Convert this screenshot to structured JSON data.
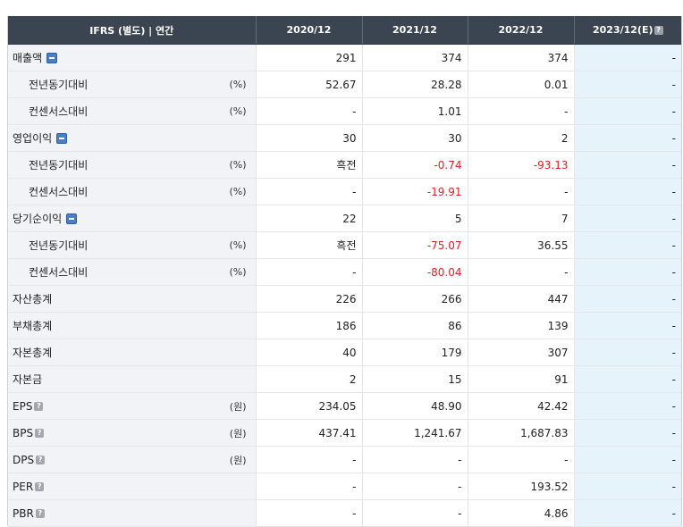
{
  "header": {
    "label_col": "IFRS (별도) | 연간",
    "periods": [
      "2020/12",
      "2021/12",
      "2022/12",
      "2023/12(E)"
    ],
    "help_glyph": "?"
  },
  "rows": [
    {
      "label": "매출액",
      "unit": "",
      "icon": "minus-icon",
      "sub": false,
      "values": [
        "291",
        "374",
        "374",
        "-"
      ]
    },
    {
      "label": "전년동기대비",
      "unit": "(%)",
      "icon": "",
      "sub": true,
      "values": [
        "52.67",
        "28.28",
        "0.01",
        "-"
      ]
    },
    {
      "label": "컨센서스대비",
      "unit": "(%)",
      "icon": "",
      "sub": true,
      "values": [
        "-",
        "1.01",
        "-",
        "-"
      ]
    },
    {
      "label": "영업이익",
      "unit": "",
      "icon": "minus-icon",
      "sub": false,
      "values": [
        "30",
        "30",
        "2",
        "-"
      ]
    },
    {
      "label": "전년동기대비",
      "unit": "(%)",
      "icon": "",
      "sub": true,
      "values": [
        "흑전",
        "-0.74",
        "-93.13",
        "-"
      ]
    },
    {
      "label": "컨센서스대비",
      "unit": "(%)",
      "icon": "",
      "sub": true,
      "values": [
        "-",
        "-19.91",
        "-",
        "-"
      ]
    },
    {
      "label": "당기순이익",
      "unit": "",
      "icon": "minus-icon",
      "sub": false,
      "values": [
        "22",
        "5",
        "7",
        "-"
      ]
    },
    {
      "label": "전년동기대비",
      "unit": "(%)",
      "icon": "",
      "sub": true,
      "values": [
        "흑전",
        "-75.07",
        "36.55",
        "-"
      ]
    },
    {
      "label": "컨센서스대비",
      "unit": "(%)",
      "icon": "",
      "sub": true,
      "values": [
        "-",
        "-80.04",
        "-",
        "-"
      ]
    },
    {
      "label": "자산총계",
      "unit": "",
      "icon": "",
      "sub": false,
      "values": [
        "226",
        "266",
        "447",
        "-"
      ]
    },
    {
      "label": "부채총계",
      "unit": "",
      "icon": "",
      "sub": false,
      "values": [
        "186",
        "86",
        "139",
        "-"
      ]
    },
    {
      "label": "자본총계",
      "unit": "",
      "icon": "",
      "sub": false,
      "values": [
        "40",
        "179",
        "307",
        "-"
      ]
    },
    {
      "label": "자본금",
      "unit": "",
      "icon": "",
      "sub": false,
      "values": [
        "2",
        "15",
        "91",
        "-"
      ]
    },
    {
      "label": "EPS",
      "unit": "(원)",
      "icon": "help-icon",
      "sub": false,
      "values": [
        "234.05",
        "48.90",
        "42.42",
        "-"
      ]
    },
    {
      "label": "BPS",
      "unit": "(원)",
      "icon": "help-icon",
      "sub": false,
      "values": [
        "437.41",
        "1,241.67",
        "1,687.83",
        "-"
      ]
    },
    {
      "label": "DPS",
      "unit": "(원)",
      "icon": "help-icon",
      "sub": false,
      "values": [
        "-",
        "-",
        "-",
        "-"
      ]
    },
    {
      "label": "PER",
      "unit": "",
      "icon": "help-icon",
      "sub": false,
      "values": [
        "-",
        "-",
        "193.52",
        "-"
      ]
    },
    {
      "label": "PBR",
      "unit": "",
      "icon": "help-icon",
      "sub": false,
      "values": [
        "-",
        "-",
        "4.86",
        "-"
      ]
    }
  ],
  "colors": {
    "header_bg": "#3b4552",
    "negative": "#e02020",
    "estimate_bg": "#e7f3fb",
    "label_bg": "#f1f3f6"
  }
}
